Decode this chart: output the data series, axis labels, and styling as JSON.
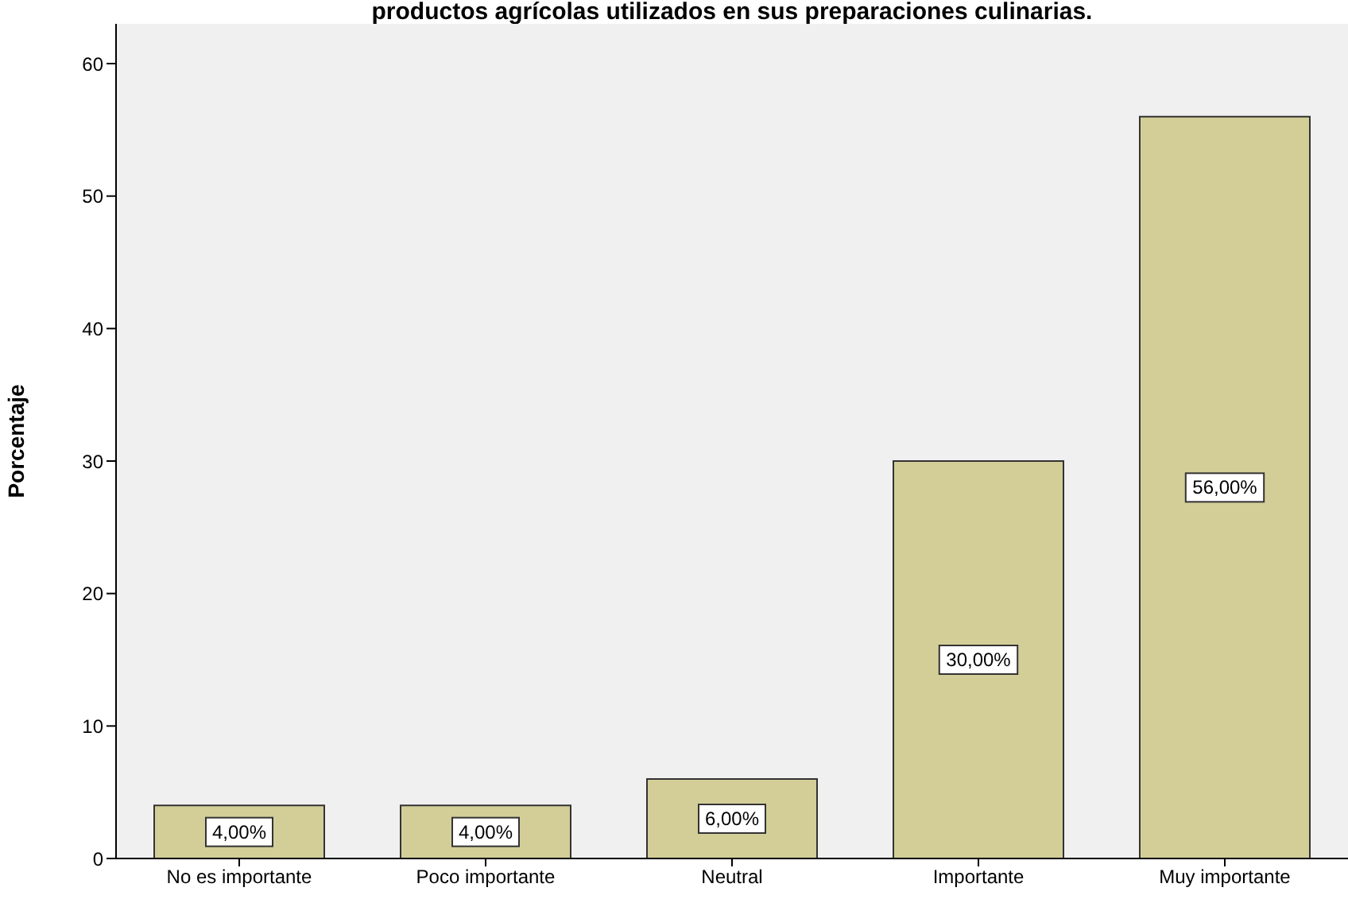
{
  "chart_data": {
    "type": "bar",
    "title": "productos agrícolas utilizados en sus preparaciones culinarias.",
    "ylabel": "Porcentaje",
    "categories": [
      "No es importante",
      "Poco importante",
      "Neutral",
      "Importante",
      "Muy importante"
    ],
    "values": [
      4,
      4,
      6,
      30,
      56
    ],
    "color": "#d3ce98",
    "value_labels": [
      "4,00%",
      "4,00%",
      "6,00%",
      "30,00%",
      "56,00%"
    ],
    "ylim": [
      0,
      63
    ],
    "yticks": [
      0,
      10,
      20,
      30,
      40,
      50,
      60
    ],
    "grid": false
  }
}
